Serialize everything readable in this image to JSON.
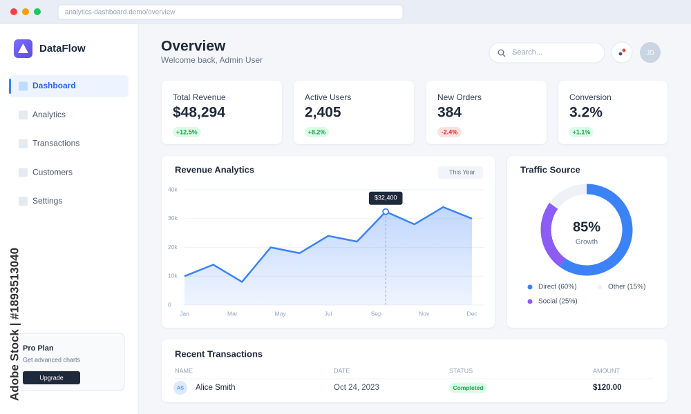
{
  "browser": {
    "url": "analytics-dashboard.demo/overview"
  },
  "sidebar": {
    "brand": "DataFlow",
    "nav": [
      {
        "label": "Dashboard",
        "active": true
      },
      {
        "label": "Analytics",
        "active": false
      },
      {
        "label": "Transactions",
        "active": false
      },
      {
        "label": "Customers",
        "active": false
      },
      {
        "label": "Settings",
        "active": false
      }
    ],
    "promo": {
      "title": "Pro Plan",
      "text": "Get advanced charts",
      "button": "Upgrade"
    }
  },
  "watermark": "Adobe Stock | #1893513040",
  "header": {
    "title": "Overview",
    "subtitle": "Welcome back, Admin User",
    "search_placeholder": "Search...",
    "avatar": "JD"
  },
  "stats": [
    {
      "label": "Total Revenue",
      "value": "$48,294",
      "change": "+12.5%"
    },
    {
      "label": "Active Users",
      "value": "2,405",
      "change": "+8.2%"
    },
    {
      "label": "New Orders",
      "value": "384",
      "change": "-2.4%"
    },
    {
      "label": "Conversion",
      "value": "3.2%",
      "change": "+1.1%"
    }
  ],
  "revenue_chart": {
    "type": "line",
    "title": "Revenue Analytics",
    "filter": "This Year",
    "x_labels": [
      "Jan",
      "Mar",
      "May",
      "Jul",
      "Sep",
      "Nov",
      "Dec"
    ],
    "values": [
      10000,
      14000,
      8000,
      20000,
      18000,
      24000,
      22000,
      32400,
      28000,
      34000,
      30000
    ],
    "value_labels": [
      null,
      null,
      null,
      null,
      null,
      null,
      null,
      "$32,400",
      null,
      null,
      null
    ],
    "color": "#3b82f6",
    "ylim": [
      0,
      40000
    ],
    "yticks": [
      0,
      {
        "value": 10000,
        "label": "10k"
      },
      {
        "value": 20000,
        "label": "20k"
      },
      {
        "value": 30000,
        "label": "30k"
      },
      {
        "value": 40000,
        "label": "40k"
      }
    ],
    "grid": true
  },
  "traffic_chart": {
    "type": "donut",
    "title": "Traffic Source",
    "center_value": "85%",
    "center_label": "Growth",
    "values": [
      60,
      25,
      15
    ],
    "legend_labels": [
      "Direct (60%)",
      "Social (25%)",
      "Other (15%)"
    ],
    "colors": [
      "#3b82f6",
      "#8b5cf6",
      "#eef1f6"
    ]
  },
  "transactions": {
    "title": "Recent Transactions",
    "columns": [
      "NAME",
      "DATE",
      "STATUS",
      "AMOUNT"
    ],
    "rows": [
      {
        "initials": "AS",
        "name": "Alice Smith",
        "date": "Oct 24, 2023",
        "status": "Completed",
        "amount": "$120.00"
      }
    ]
  }
}
